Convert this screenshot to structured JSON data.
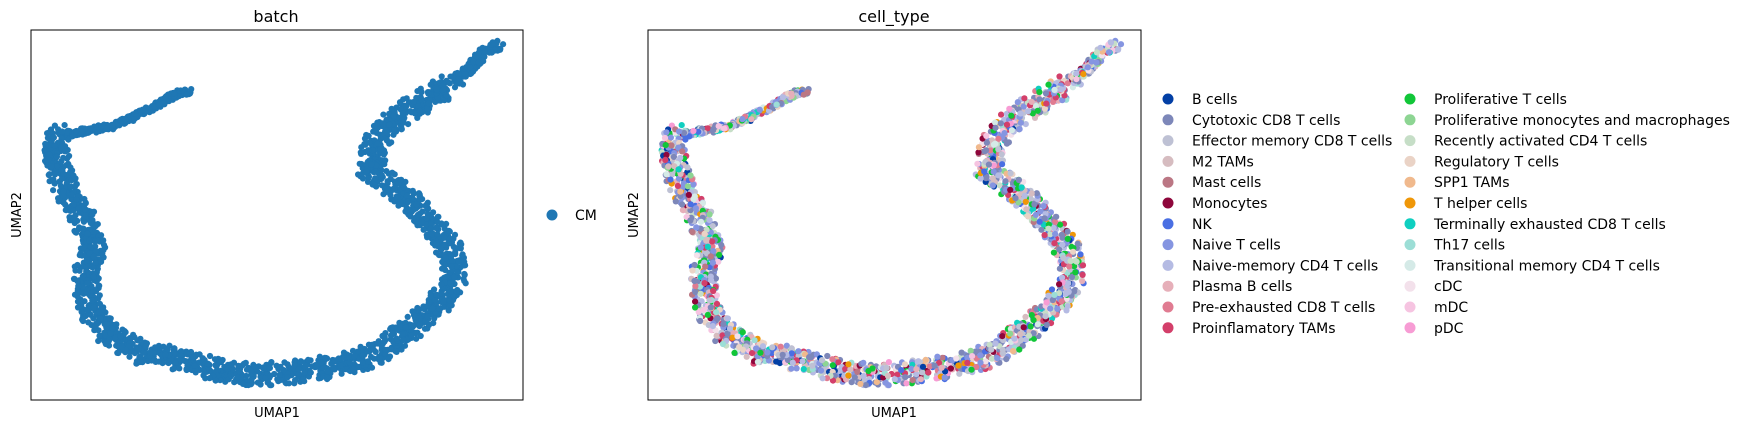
{
  "chart_data": [
    {
      "type": "scatter",
      "title": "batch",
      "xlabel": "UMAP1",
      "ylabel": "UMAP2",
      "grid": false,
      "legend_position": "right",
      "legend": [
        {
          "label": "CM",
          "color": "#1f77b4"
        }
      ],
      "series": [
        {
          "name": "CM",
          "color": "#1f77b4",
          "path": [
            [
              0.325,
              0.164
            ],
            [
              0.3,
              0.17
            ],
            [
              0.265,
              0.195
            ],
            [
              0.21,
              0.235
            ],
            [
              0.16,
              0.262
            ],
            [
              0.1,
              0.275
            ],
            [
              0.062,
              0.285
            ],
            [
              0.048,
              0.31
            ],
            [
              0.055,
              0.37
            ],
            [
              0.08,
              0.46
            ],
            [
              0.11,
              0.52
            ],
            [
              0.125,
              0.58
            ],
            [
              0.115,
              0.65
            ],
            [
              0.115,
              0.72
            ],
            [
              0.13,
              0.78
            ],
            [
              0.165,
              0.83
            ],
            [
              0.22,
              0.87
            ],
            [
              0.29,
              0.89
            ],
            [
              0.35,
              0.905
            ],
            [
              0.42,
              0.93
            ],
            [
              0.49,
              0.93
            ],
            [
              0.56,
              0.92
            ],
            [
              0.63,
              0.905
            ],
            [
              0.7,
              0.875
            ],
            [
              0.76,
              0.82
            ],
            [
              0.82,
              0.75
            ],
            [
              0.86,
              0.68
            ],
            [
              0.855,
              0.6
            ],
            [
              0.82,
              0.53
            ],
            [
              0.77,
              0.46
            ],
            [
              0.69,
              0.38
            ],
            [
              0.7,
              0.3
            ],
            [
              0.75,
              0.23
            ],
            [
              0.81,
              0.18
            ],
            [
              0.86,
              0.14
            ],
            [
              0.895,
              0.1
            ],
            [
              0.92,
              0.06
            ],
            [
              0.95,
              0.04
            ]
          ]
        }
      ]
    },
    {
      "type": "scatter",
      "title": "cell_type",
      "xlabel": "UMAP1",
      "ylabel": "UMAP2",
      "grid": false,
      "legend_position": "right",
      "legend": [
        {
          "label": "B cells",
          "color": "#023fa5"
        },
        {
          "label": "Cytotoxic CD8 T cells",
          "color": "#7d87b9"
        },
        {
          "label": "Effector memory CD8 T cells",
          "color": "#bec1d4"
        },
        {
          "label": "M2 TAMs",
          "color": "#d6bcc0"
        },
        {
          "label": "Mast cells",
          "color": "#bb7784"
        },
        {
          "label": "Monocytes",
          "color": "#8e063b"
        },
        {
          "label": "NK",
          "color": "#4a6fe3"
        },
        {
          "label": "Naive T cells",
          "color": "#8595e1"
        },
        {
          "label": "Naive-memory CD4 T cells",
          "color": "#b5bbe3"
        },
        {
          "label": "Plasma B cells",
          "color": "#e6afb9"
        },
        {
          "label": "Pre-exhausted CD8 T cells",
          "color": "#e07b91"
        },
        {
          "label": "Proinflamatory TAMs",
          "color": "#d33f6a"
        },
        {
          "label": "Proliferative T cells",
          "color": "#11c638"
        },
        {
          "label": "Proliferative monocytes and macrophages",
          "color": "#8dd593"
        },
        {
          "label": "Recently activated CD4 T cells",
          "color": "#c6dec7"
        },
        {
          "label": "Regulatory T cells",
          "color": "#ead3c6"
        },
        {
          "label": "SPP1 TAMs",
          "color": "#f0b98d"
        },
        {
          "label": "T helper cells",
          "color": "#ef9708"
        },
        {
          "label": "Terminally exhausted CD8 T cells",
          "color": "#0fcfc0"
        },
        {
          "label": "Th17 cells",
          "color": "#9cded6"
        },
        {
          "label": "Transitional memory CD4 T cells",
          "color": "#d5eae7"
        },
        {
          "label": "cDC",
          "color": "#f3e1eb"
        },
        {
          "label": "mDC",
          "color": "#f6c4e1"
        },
        {
          "label": "pDC",
          "color": "#f79cd4"
        }
      ]
    }
  ]
}
